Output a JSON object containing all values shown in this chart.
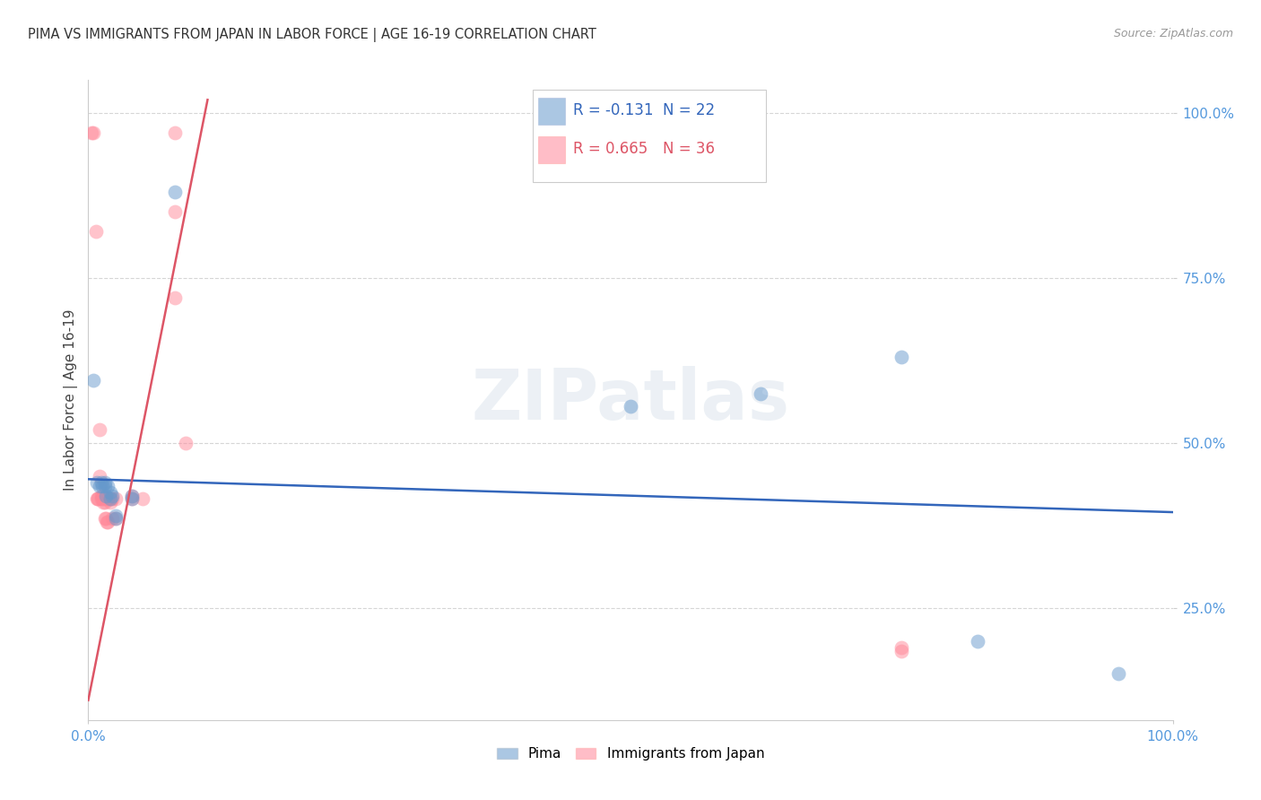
{
  "title": "PIMA VS IMMIGRANTS FROM JAPAN IN LABOR FORCE | AGE 16-19 CORRELATION CHART",
  "source": "Source: ZipAtlas.com",
  "ylabel": "In Labor Force | Age 16-19",
  "watermark": "ZIPatlas",
  "xlim": [
    0.0,
    1.0
  ],
  "ylim": [
    0.08,
    1.05
  ],
  "xtick_positions": [
    0.0,
    1.0
  ],
  "xtick_labels": [
    "0.0%",
    "100.0%"
  ],
  "ytick_positions": [
    0.25,
    0.5,
    0.75,
    1.0
  ],
  "ytick_labels": [
    "25.0%",
    "50.0%",
    "75.0%",
    "100.0%"
  ],
  "pima_color": "#6699CC",
  "japan_color": "#FF8899",
  "pima_line_color": "#3366BB",
  "japan_line_color": "#DD5566",
  "legend_pima_R": "-0.131",
  "legend_pima_N": "22",
  "legend_japan_R": "0.665",
  "legend_japan_N": "36",
  "pima_points_x": [
    0.005,
    0.008,
    0.01,
    0.012,
    0.013,
    0.015,
    0.015,
    0.016,
    0.018,
    0.02,
    0.02,
    0.022,
    0.025,
    0.025,
    0.04,
    0.04,
    0.08,
    0.5,
    0.62,
    0.75,
    0.82,
    0.95
  ],
  "pima_points_y": [
    0.595,
    0.44,
    0.435,
    0.44,
    0.435,
    0.44,
    0.435,
    0.42,
    0.435,
    0.425,
    0.415,
    0.42,
    0.39,
    0.385,
    0.42,
    0.415,
    0.88,
    0.555,
    0.575,
    0.63,
    0.2,
    0.15
  ],
  "japan_points_x": [
    0.003,
    0.005,
    0.007,
    0.008,
    0.009,
    0.009,
    0.01,
    0.01,
    0.012,
    0.012,
    0.013,
    0.013,
    0.014,
    0.015,
    0.015,
    0.015,
    0.016,
    0.017,
    0.018,
    0.018,
    0.019,
    0.02,
    0.02,
    0.022,
    0.022,
    0.025,
    0.025,
    0.04,
    0.04,
    0.05,
    0.08,
    0.08,
    0.08,
    0.09,
    0.75,
    0.75
  ],
  "japan_points_y": [
    0.97,
    0.97,
    0.82,
    0.415,
    0.415,
    0.415,
    0.52,
    0.45,
    0.42,
    0.415,
    0.42,
    0.415,
    0.41,
    0.415,
    0.41,
    0.385,
    0.385,
    0.38,
    0.415,
    0.38,
    0.415,
    0.415,
    0.41,
    0.415,
    0.385,
    0.415,
    0.385,
    0.42,
    0.415,
    0.415,
    0.97,
    0.85,
    0.72,
    0.5,
    0.19,
    0.185
  ],
  "pima_trend_x": [
    0.0,
    1.0
  ],
  "pima_trend_y": [
    0.445,
    0.395
  ],
  "japan_trend_x": [
    0.0,
    0.11
  ],
  "japan_trend_y": [
    0.11,
    1.02
  ],
  "background_color": "#FFFFFF",
  "grid_color": "#CCCCCC",
  "tick_color": "#5599DD",
  "label_color": "#444444"
}
